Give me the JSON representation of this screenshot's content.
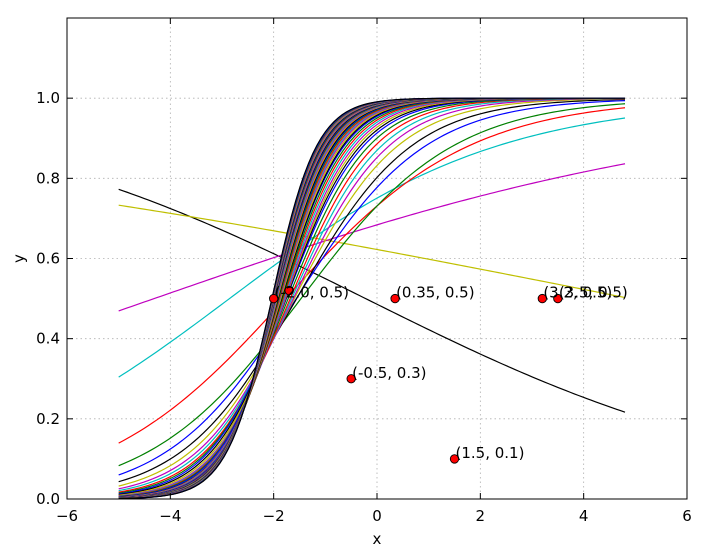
{
  "chart_data": {
    "type": "line",
    "title": "",
    "xlabel": "x",
    "ylabel": "y",
    "xlim": [
      -6,
      6
    ],
    "ylim": [
      0,
      1.2
    ],
    "xticks": [
      -6,
      -4,
      -2,
      0,
      2,
      4,
      6
    ],
    "xtick_labels": [
      "−6",
      "−4",
      "−2",
      "0",
      "2",
      "4",
      "6"
    ],
    "yticks": [
      0.0,
      0.2,
      0.4,
      0.6,
      0.8,
      1.0
    ],
    "ytick_labels": [
      "0.0",
      "0.2",
      "0.4",
      "0.6",
      "0.8",
      "1.0"
    ],
    "grid": true,
    "legend": "none",
    "x_range": [
      -5,
      4.8
    ],
    "series_model": "sigmoid y = 1 / (1 + exp(-(w*x + b)))",
    "series": [
      {
        "color": "#000000",
        "w": -0.256,
        "b": -0.0564
      },
      {
        "color": "#bfbf00",
        "w": -0.102,
        "b": 0.5
      },
      {
        "color": "#bf00bf",
        "w": 0.179,
        "b": 0.772
      },
      {
        "color": "#00bfbf",
        "w": 0.386,
        "b": 1.102
      },
      {
        "color": "#ff0000",
        "w": 0.564,
        "b": 1.0
      },
      {
        "color": "#008000",
        "w": 0.68,
        "b": 1.0
      },
      {
        "color": "#0000ff",
        "w": 0.8,
        "b": 1.25
      },
      {
        "color": "#000000",
        "w": 0.9,
        "b": 1.4
      },
      {
        "color": "#bfbf00",
        "w": 1.0,
        "b": 1.6
      },
      {
        "color": "#bf00bf",
        "w": 1.08,
        "b": 1.75
      },
      {
        "color": "#00bfbf",
        "w": 1.15,
        "b": 1.9
      },
      {
        "color": "#ff0000",
        "w": 1.22,
        "b": 2.05
      },
      {
        "color": "#008000",
        "w": 1.28,
        "b": 2.2
      },
      {
        "color": "#0000ff",
        "w": 1.34,
        "b": 2.35
      },
      {
        "color": "#000000",
        "w": 1.39,
        "b": 2.45
      },
      {
        "color": "#bfbf00",
        "w": 1.44,
        "b": 2.55
      },
      {
        "color": "#bf00bf",
        "w": 1.49,
        "b": 2.65
      },
      {
        "color": "#00bfbf",
        "w": 1.53,
        "b": 2.75
      },
      {
        "color": "#ff0000",
        "w": 1.57,
        "b": 2.85
      },
      {
        "color": "#008000",
        "w": 1.61,
        "b": 2.95
      },
      {
        "color": "#0000ff",
        "w": 1.65,
        "b": 3.05
      },
      {
        "color": "#000000",
        "w": 1.69,
        "b": 3.12
      },
      {
        "color": "#bfbf00",
        "w": 1.72,
        "b": 3.2
      },
      {
        "color": "#bf00bf",
        "w": 1.75,
        "b": 3.28
      },
      {
        "color": "#00bfbf",
        "w": 1.78,
        "b": 3.35
      },
      {
        "color": "#ff0000",
        "w": 1.81,
        "b": 3.42
      },
      {
        "color": "#008000",
        "w": 1.84,
        "b": 3.5
      },
      {
        "color": "#0000ff",
        "w": 1.86,
        "b": 3.56
      },
      {
        "color": "#000000",
        "w": 1.89,
        "b": 3.62
      },
      {
        "color": "#bfbf00",
        "w": 1.91,
        "b": 3.68
      },
      {
        "color": "#bf00bf",
        "w": 1.93,
        "b": 3.74
      },
      {
        "color": "#00bfbf",
        "w": 1.95,
        "b": 3.8
      },
      {
        "color": "#ff0000",
        "w": 1.97,
        "b": 3.86
      },
      {
        "color": "#008000",
        "w": 1.99,
        "b": 3.91
      },
      {
        "color": "#0000ff",
        "w": 2.01,
        "b": 3.96
      },
      {
        "color": "#000000",
        "w": 2.03,
        "b": 4.01
      },
      {
        "color": "#bfbf00",
        "w": 2.05,
        "b": 4.06
      },
      {
        "color": "#bf00bf",
        "w": 2.07,
        "b": 4.1
      },
      {
        "color": "#00bfbf",
        "w": 2.09,
        "b": 4.15
      },
      {
        "color": "#ff0000",
        "w": 2.11,
        "b": 4.2
      },
      {
        "color": "#008000",
        "w": 2.13,
        "b": 4.25
      },
      {
        "color": "#0000ff",
        "w": 2.15,
        "b": 4.3
      },
      {
        "color": "#000000",
        "w": 2.17,
        "b": 4.35
      },
      {
        "color": "#bfbf00",
        "w": 2.19,
        "b": 4.4
      },
      {
        "color": "#bf00bf",
        "w": 2.21,
        "b": 4.45
      },
      {
        "color": "#00bfbf",
        "w": 2.23,
        "b": 4.5
      },
      {
        "color": "#ff0000",
        "w": 2.25,
        "b": 4.55
      },
      {
        "color": "#008000",
        "w": 2.27,
        "b": 4.6
      },
      {
        "color": "#0000ff",
        "w": 2.29,
        "b": 4.65
      },
      {
        "color": "#000000",
        "w": 2.31,
        "b": 4.7
      }
    ],
    "points": [
      {
        "x": -2.0,
        "y": 0.5,
        "label": "(-2.0, 0.5)"
      },
      {
        "x": -1.7,
        "y": 0.52,
        "label": ""
      },
      {
        "x": 0.35,
        "y": 0.5,
        "label": "(0.35, 0.5)"
      },
      {
        "x": 3.2,
        "y": 0.5,
        "label": "(3.2, 0.5)"
      },
      {
        "x": 3.5,
        "y": 0.5,
        "label": "(3.5, 0.5)"
      },
      {
        "x": -0.5,
        "y": 0.3,
        "label": "(-0.5, 0.3)"
      },
      {
        "x": 1.5,
        "y": 0.1,
        "label": "(1.5, 0.1)"
      }
    ],
    "point_color": "#ff0000"
  }
}
